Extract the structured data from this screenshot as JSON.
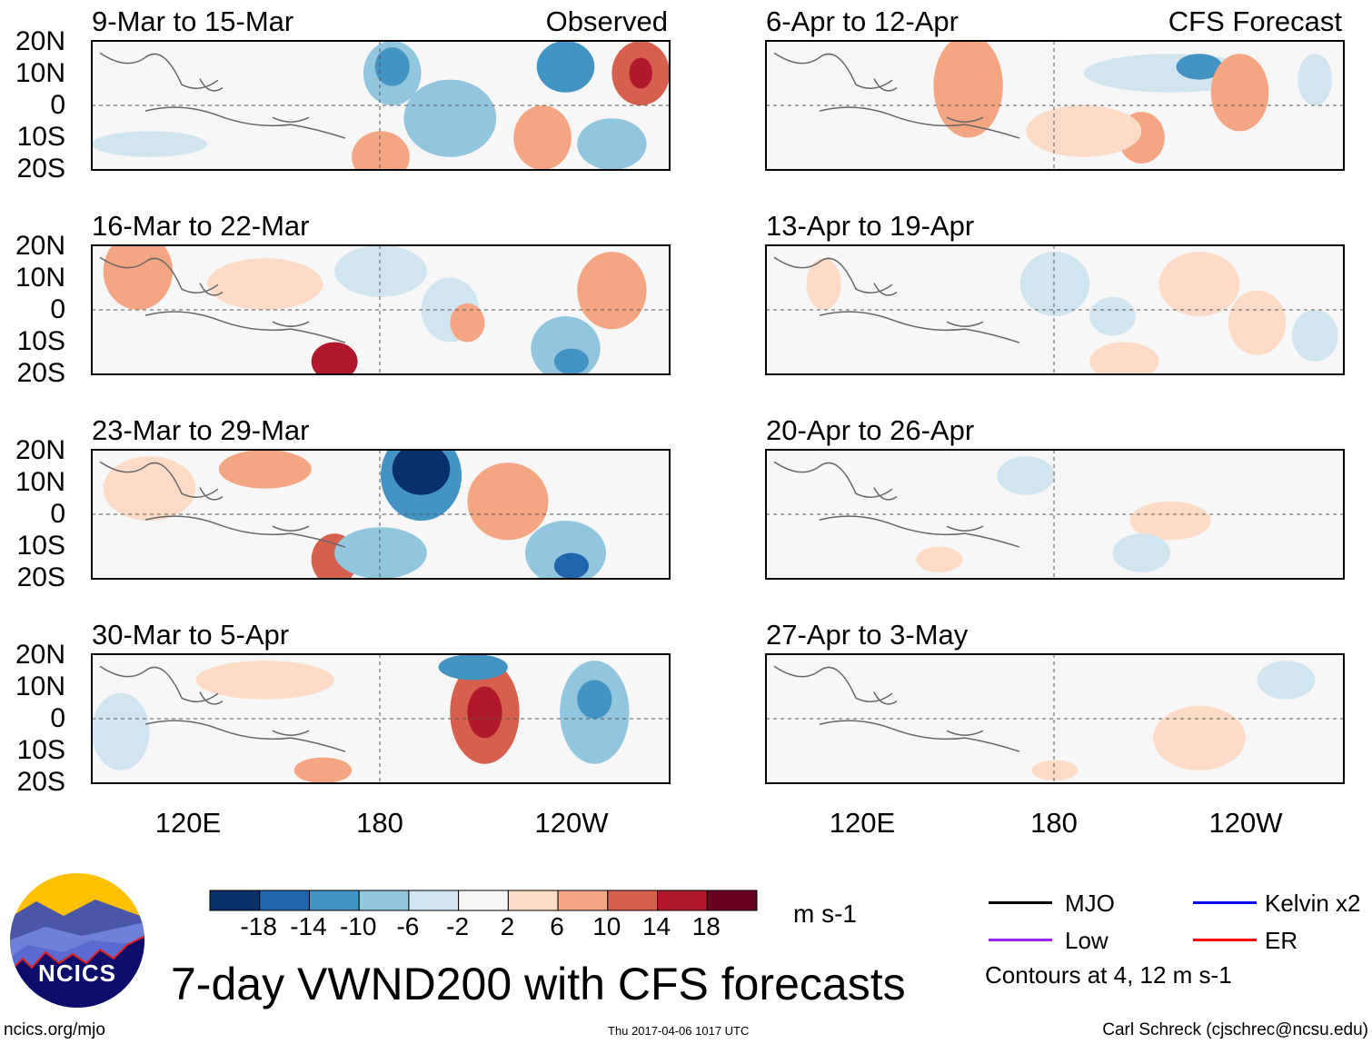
{
  "panels_left": [
    {
      "title": "9-Mar to 15-Mar",
      "label": "Observed"
    },
    {
      "title": "16-Mar to 22-Mar",
      "label": ""
    },
    {
      "title": "23-Mar to 29-Mar",
      "label": ""
    },
    {
      "title": "30-Mar to 5-Apr",
      "label": ""
    }
  ],
  "panels_right": [
    {
      "title": "6-Apr to 12-Apr",
      "label": "CFS Forecast"
    },
    {
      "title": "13-Apr to 19-Apr",
      "label": ""
    },
    {
      "title": "20-Apr to 26-Apr",
      "label": ""
    },
    {
      "title": "27-Apr to 3-May",
      "label": ""
    }
  ],
  "lat_labels": [
    "20N",
    "10N",
    "0",
    "10S",
    "20S"
  ],
  "lon_labels": [
    "120E",
    "180",
    "120W"
  ],
  "colorbar": {
    "colors": [
      "#08306b",
      "#2166ac",
      "#4393c3",
      "#92c5de",
      "#d1e5f0",
      "#f7f7f7",
      "#fddbc7",
      "#f4a582",
      "#d6604d",
      "#b2182b",
      "#67001f"
    ],
    "labels": [
      "-18",
      "-14",
      "-10",
      "-6",
      "-2",
      "2",
      "6",
      "10",
      "14",
      "18"
    ],
    "units": "m s-1"
  },
  "legend": {
    "items": [
      {
        "name": "MJO",
        "color": "#000000"
      },
      {
        "name": "Kelvin x2",
        "color": "#0000ff"
      },
      {
        "name": "Low",
        "color": "#a020f0"
      },
      {
        "name": "ER",
        "color": "#ff0000"
      }
    ],
    "contours_note": "Contours at 4, 12 m s-1"
  },
  "logo_text": "NCICS",
  "main_title": "7-day VWND200 with CFS forecasts",
  "footer": {
    "url": "ncics.org/mjo",
    "timestamp": "Thu 2017-04-06 1017 UTC",
    "author": "Carl Schreck (cjschrec@ncsu.edu)"
  }
}
